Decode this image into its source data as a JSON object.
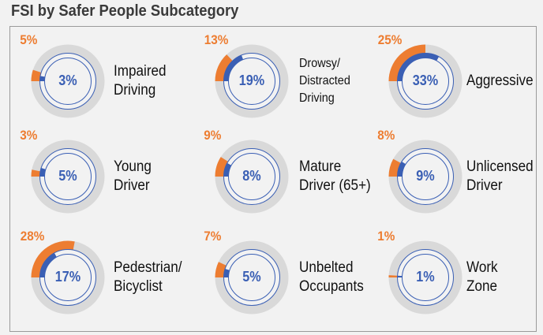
{
  "title": "FSI by Safer People Subcategory",
  "colors": {
    "outer": "#ed7d31",
    "inner": "#3a5fb4",
    "ring": "#d9d9d9"
  },
  "items": [
    {
      "label": "Impaired Driving",
      "lines": [
        "Impaired",
        "Driving"
      ],
      "outer": "5%",
      "inner": "3%",
      "outer_value": 5,
      "inner_value": 3
    },
    {
      "label": "Drowsy/ Distracted Driving",
      "lines": [
        "Drowsy/",
        "Distracted",
        "Driving"
      ],
      "outer": "13%",
      "inner": "19%",
      "outer_value": 13,
      "inner_value": 19
    },
    {
      "label": "Aggressive",
      "lines": [
        "Aggressive"
      ],
      "outer": "25%",
      "inner": "33%",
      "outer_value": 25,
      "inner_value": 33
    },
    {
      "label": "Young Driver",
      "lines": [
        "Young",
        "Driver"
      ],
      "outer": "3%",
      "inner": "5%",
      "outer_value": 3,
      "inner_value": 5
    },
    {
      "label": "Mature Driver (65+)",
      "lines": [
        "Mature",
        "Driver (65+)"
      ],
      "outer": "9%",
      "inner": "8%",
      "outer_value": 9,
      "inner_value": 8
    },
    {
      "label": "Unlicensed Driver",
      "lines": [
        "Unlicensed",
        "Driver"
      ],
      "outer": "8%",
      "inner": "9%",
      "outer_value": 8,
      "inner_value": 9
    },
    {
      "label": "Pedestrian/ Bicyclist",
      "lines": [
        "Pedestrian/",
        "Bicyclist"
      ],
      "outer": "28%",
      "inner": "17%",
      "outer_value": 28,
      "inner_value": 17
    },
    {
      "label": "Unbelted Occupants",
      "lines": [
        "Unbelted",
        "Occupants"
      ],
      "outer": "7%",
      "inner": "5%",
      "outer_value": 7,
      "inner_value": 5
    },
    {
      "label": "Work Zone",
      "lines": [
        "Work",
        "Zone"
      ],
      "outer": "1%",
      "inner": "1%",
      "outer_value": 1,
      "inner_value": 1
    }
  ]
}
